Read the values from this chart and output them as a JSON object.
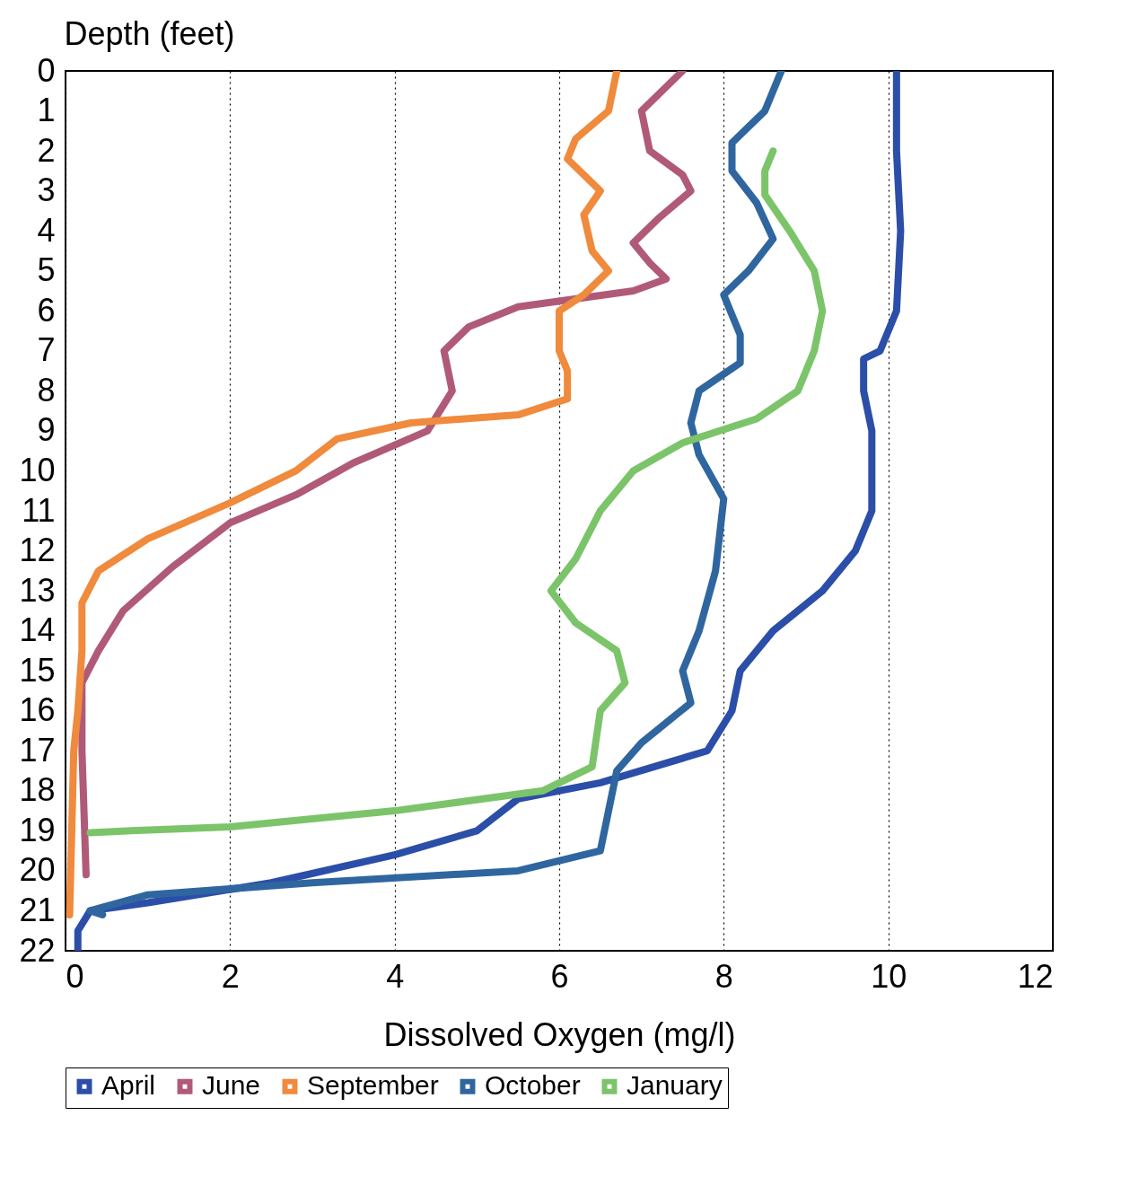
{
  "chart_data": {
    "type": "line",
    "xlabel": "Dissolved Oxygen (mg/l)",
    "ylabel": "Depth (feet)",
    "xlim": [
      0,
      12
    ],
    "xticks": [
      0,
      2,
      4,
      6,
      8,
      10,
      12
    ],
    "ylim": [
      22,
      0
    ],
    "yticks": [
      0,
      1,
      2,
      3,
      4,
      5,
      6,
      7,
      8,
      9,
      10,
      11,
      12,
      13,
      14,
      15,
      16,
      17,
      18,
      19,
      20,
      21,
      22
    ],
    "grid": "x",
    "legend": "bottom",
    "series": [
      {
        "name": "April",
        "color": "#2b4ea8",
        "x": [
          10.1,
          10.1,
          10.15,
          10.1,
          9.9,
          9.7,
          9.7,
          9.8,
          9.8,
          9.6,
          9.2,
          8.6,
          8.2,
          8.1,
          7.8,
          6.5,
          5.5,
          5,
          4,
          2.5,
          1,
          0.3,
          0.15,
          0.15
        ],
        "values": [
          0,
          2,
          4,
          6,
          7,
          7.2,
          8,
          9,
          11,
          12,
          13,
          14,
          15,
          16,
          17,
          17.8,
          18.2,
          19,
          19.6,
          20.3,
          20.8,
          21,
          21.5,
          22
        ]
      },
      {
        "name": "June",
        "color": "#b05a78",
        "x": [
          7.5,
          7,
          7.1,
          7.5,
          7.6,
          7.2,
          6.9,
          7.1,
          7.3,
          6.9,
          5.5,
          4.9,
          4.6,
          4.7,
          4.4,
          3.5,
          2.8,
          2,
          1.3,
          0.7,
          0.4,
          0.2,
          0.2,
          0.25
        ],
        "values": [
          0,
          1,
          2,
          2.6,
          3,
          3.7,
          4.3,
          4.8,
          5.2,
          5.5,
          5.9,
          6.4,
          7,
          8,
          9,
          9.8,
          10.6,
          11.3,
          12.4,
          13.5,
          14.5,
          15.3,
          17,
          20.1
        ]
      },
      {
        "name": "September",
        "color": "#f08a3c",
        "x": [
          6.7,
          6.6,
          6.2,
          6.1,
          6.5,
          6.3,
          6.4,
          6.6,
          6.3,
          6,
          6,
          6.1,
          6.1,
          5.5,
          4.2,
          3.3,
          2.8,
          2,
          1,
          0.4,
          0.2,
          0.2,
          0.15,
          0.1,
          0.05
        ],
        "values": [
          0,
          1,
          1.7,
          2.2,
          3,
          3.6,
          4.5,
          5,
          5.6,
          6,
          7,
          7.5,
          8.2,
          8.6,
          8.8,
          9.2,
          10,
          10.8,
          11.7,
          12.5,
          13.3,
          14.5,
          16,
          17,
          21.1
        ]
      },
      {
        "name": "October",
        "color": "#2f66a0",
        "x": [
          8.7,
          8.5,
          8.1,
          8.1,
          8.4,
          8.6,
          8.3,
          8,
          8.2,
          8.2,
          7.7,
          7.6,
          7.7,
          8,
          7.9,
          7.7,
          7.5,
          7.6,
          7,
          6.7,
          6.6,
          6.5,
          5.5,
          3,
          1,
          0.3,
          0.45
        ],
        "values": [
          0,
          1,
          1.8,
          2.5,
          3.3,
          4.2,
          5,
          5.6,
          6.6,
          7.3,
          8,
          8.8,
          9.6,
          10.7,
          12.5,
          14,
          15,
          15.8,
          16.8,
          17.5,
          18.5,
          19.5,
          20,
          20.3,
          20.6,
          21,
          21.1
        ]
      },
      {
        "name": "January",
        "color": "#7cc46a",
        "x": [
          8.6,
          8.5,
          8.5,
          8.8,
          9.1,
          9.2,
          9.1,
          8.9,
          8.4,
          7.5,
          6.9,
          6.5,
          6.2,
          5.9,
          6.2,
          6.7,
          6.8,
          6.5,
          6.4,
          5.8,
          4,
          2,
          0.8,
          0.3
        ],
        "values": [
          2,
          2.5,
          3.1,
          4,
          5,
          6,
          7,
          8,
          8.7,
          9.3,
          10,
          11,
          12.2,
          13,
          13.8,
          14.5,
          15.3,
          16,
          17.4,
          18,
          18.5,
          18.9,
          19,
          19.05
        ]
      }
    ]
  }
}
